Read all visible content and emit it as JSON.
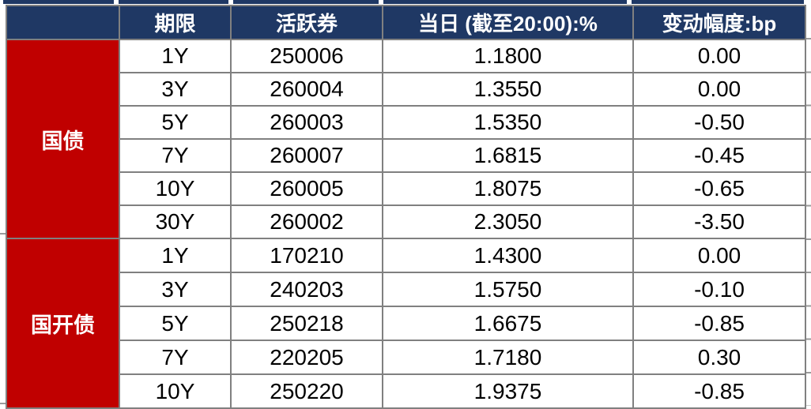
{
  "colors": {
    "header_bg": "#1f3864",
    "header_text": "#ffffff",
    "category_bg": "#c00000",
    "border": "#808080",
    "text": "#000000"
  },
  "table": {
    "headers": {
      "category": "",
      "term": "期限",
      "bond": "活跃券",
      "yield": "当日 (截至20:00):%",
      "change": "变动幅度:bp"
    },
    "groups": [
      {
        "name": "国债",
        "rows": [
          {
            "term": "1Y",
            "bond": "250006",
            "yield": "1.1800",
            "change": "0.00"
          },
          {
            "term": "3Y",
            "bond": "260004",
            "yield": "1.3550",
            "change": "0.00"
          },
          {
            "term": "5Y",
            "bond": "260003",
            "yield": "1.5350",
            "change": "-0.50"
          },
          {
            "term": "7Y",
            "bond": "260007",
            "yield": "1.6815",
            "change": "-0.45"
          },
          {
            "term": "10Y",
            "bond": "260005",
            "yield": "1.8075",
            "change": "-0.65"
          },
          {
            "term": "30Y",
            "bond": "260002",
            "yield": "2.3050",
            "change": "-3.50"
          }
        ]
      },
      {
        "name": "国开债",
        "rows": [
          {
            "term": "1Y",
            "bond": "170210",
            "yield": "1.4300",
            "change": "0.00"
          },
          {
            "term": "3Y",
            "bond": "240203",
            "yield": "1.5750",
            "change": "-0.10"
          },
          {
            "term": "5Y",
            "bond": "250218",
            "yield": "1.6675",
            "change": "-0.85"
          },
          {
            "term": "7Y",
            "bond": "220205",
            "yield": "1.7180",
            "change": "0.30"
          },
          {
            "term": "10Y",
            "bond": "250220",
            "yield": "1.9375",
            "change": "-0.85"
          }
        ]
      }
    ]
  },
  "chart_data": {
    "type": "table",
    "columns": [
      "",
      "期限",
      "活跃券",
      "当日 (截至20:00):%",
      "变动幅度:bp"
    ],
    "rows": [
      [
        "国债",
        "1Y",
        "250006",
        "1.1800",
        "0.00"
      ],
      [
        "国债",
        "3Y",
        "260004",
        "1.3550",
        "0.00"
      ],
      [
        "国债",
        "5Y",
        "260003",
        "1.5350",
        "-0.50"
      ],
      [
        "国债",
        "7Y",
        "260007",
        "1.6815",
        "-0.45"
      ],
      [
        "国债",
        "10Y",
        "260005",
        "1.8075",
        "-0.65"
      ],
      [
        "国债",
        "30Y",
        "260002",
        "2.3050",
        "-3.50"
      ],
      [
        "国开债",
        "1Y",
        "170210",
        "1.4300",
        "0.00"
      ],
      [
        "国开债",
        "3Y",
        "240203",
        "1.5750",
        "-0.10"
      ],
      [
        "国开债",
        "5Y",
        "250218",
        "1.6675",
        "-0.85"
      ],
      [
        "国开债",
        "7Y",
        "220205",
        "1.7180",
        "0.30"
      ],
      [
        "国开债",
        "10Y",
        "250220",
        "1.9375",
        "-0.85"
      ]
    ]
  }
}
